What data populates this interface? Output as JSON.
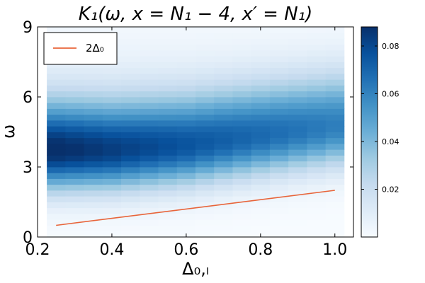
{
  "chart_data": {
    "type": "heatmap",
    "title": "K₁(ω, x = N₁ − 4, x′ = N₁)",
    "xlabel": "Δ₀,ₗ",
    "ylabel": "ω",
    "xlim": [
      0.2,
      1.05
    ],
    "ylim": [
      0,
      9
    ],
    "x_ticks": [
      "0.2",
      "0.4",
      "0.6",
      "0.8",
      "1.0"
    ],
    "y_ticks": [
      "0",
      "3",
      "6",
      "9"
    ],
    "x_values": [
      0.25,
      0.3,
      0.35,
      0.4,
      0.45,
      0.5,
      0.55,
      0.6,
      0.65,
      0.7,
      0.75,
      0.8,
      0.85,
      0.9,
      0.95,
      1.0
    ],
    "omega_range": [
      0,
      9
    ],
    "omega_bins": 36,
    "peak_omega_by_x": [
      3.7,
      3.7,
      3.7,
      3.7,
      3.75,
      3.8,
      3.85,
      3.9,
      4.0,
      4.1,
      4.2,
      4.3,
      4.4,
      4.5,
      4.6,
      4.7
    ],
    "peak_intensity_by_x": [
      0.088,
      0.086,
      0.084,
      0.082,
      0.08,
      0.078,
      0.076,
      0.074,
      0.072,
      0.07,
      0.068,
      0.066,
      0.064,
      0.062,
      0.06,
      0.058
    ],
    "colorbar": {
      "range": [
        0.0,
        0.088
      ],
      "ticks": [
        "0.02",
        "0.04",
        "0.06",
        "0.08"
      ],
      "tick_values": [
        0.02,
        0.04,
        0.06,
        0.08
      ],
      "colormap": "Blues"
    },
    "series": [
      {
        "name": "2Δ₀",
        "x": [
          0.25,
          1.0
        ],
        "y": [
          0.5,
          2.0
        ],
        "color": "#e8643a"
      }
    ],
    "legend_position": "top-left",
    "grid": false
  }
}
